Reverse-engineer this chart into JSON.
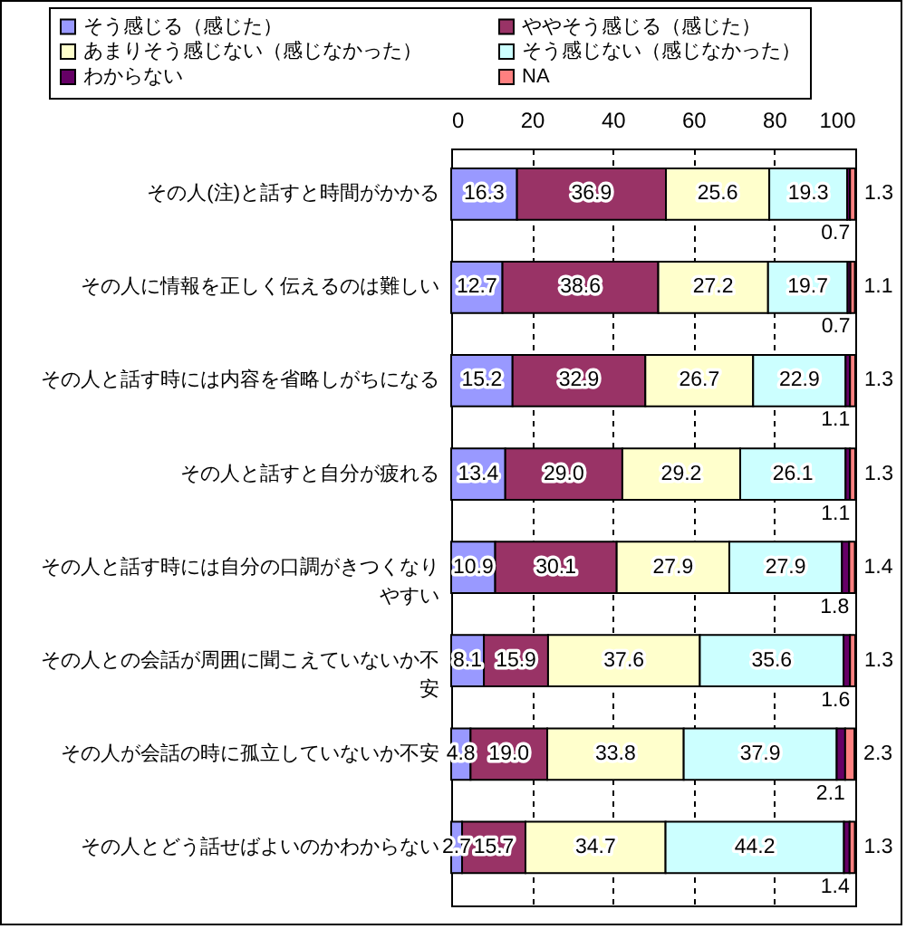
{
  "chart_data": {
    "type": "bar",
    "orientation": "horizontal",
    "stacked": true,
    "categories": [
      "その人(注)と話すと時間がかかる",
      "その人に情報を正しく伝えるのは難しい",
      "その人と話す時には内容を省略しがちになる",
      "その人と話すと自分が疲れる",
      "その人と話す時には自分の口調がきつくなりやすい",
      "その人との会話が周囲に聞こえていないか不安",
      "その人が会話の時に孤立していないか不安",
      "その人とどう話せばよいのかわからない"
    ],
    "series": [
      {
        "name": "そう感じる（感じた）",
        "color": "#9999ff",
        "values": [
          16.3,
          12.7,
          15.2,
          13.4,
          10.9,
          8.1,
          4.8,
          2.7
        ],
        "value_labels": [
          "16.3",
          "12.7",
          "15.2",
          "13.4",
          "10.9",
          "8.1",
          "4.8",
          "2.7"
        ]
      },
      {
        "name": "ややそう感じる（感じた）",
        "color": "#993366",
        "values": [
          36.9,
          38.6,
          32.9,
          29.0,
          30.1,
          15.9,
          19.0,
          15.7
        ],
        "value_labels": [
          "36.9",
          "38.6",
          "32.9",
          "29.0",
          "30.1",
          "15.9",
          "19.0",
          "15.7"
        ]
      },
      {
        "name": "あまりそう感じない（感じなかった）",
        "color": "#ffffcc",
        "values": [
          25.6,
          27.2,
          26.7,
          29.2,
          27.9,
          37.6,
          33.8,
          34.7
        ],
        "value_labels": [
          "25.6",
          "27.2",
          "26.7",
          "29.2",
          "27.9",
          "37.6",
          "33.8",
          "34.7"
        ]
      },
      {
        "name": "そう感じない（感じなかった）",
        "color": "#ccffff",
        "values": [
          19.3,
          19.7,
          22.9,
          26.1,
          27.9,
          35.6,
          37.9,
          44.2
        ],
        "value_labels": [
          "19.3",
          "19.7",
          "22.9",
          "26.1",
          "27.9",
          "35.6",
          "37.9",
          "44.2"
        ]
      },
      {
        "name": "わからない",
        "color": "#660066",
        "values": [
          0.7,
          0.7,
          1.1,
          1.1,
          1.8,
          1.6,
          2.1,
          1.4
        ],
        "value_labels": [
          "0.7",
          "0.7",
          "1.1",
          "1.1",
          "1.8",
          "1.6",
          "2.1",
          "1.4"
        ]
      },
      {
        "name": "NA",
        "color": "#ff8080",
        "values": [
          1.3,
          1.1,
          1.3,
          1.3,
          1.4,
          1.3,
          2.3,
          1.3
        ],
        "value_labels": [
          "1.3",
          "1.1",
          "1.3",
          "1.3",
          "1.4",
          "1.3",
          "2.3",
          "1.3"
        ]
      }
    ],
    "xlim": [
      0,
      100.1
    ],
    "xticks": [
      0,
      20,
      40,
      60,
      80,
      100
    ],
    "grid": "x",
    "legend": "top"
  }
}
